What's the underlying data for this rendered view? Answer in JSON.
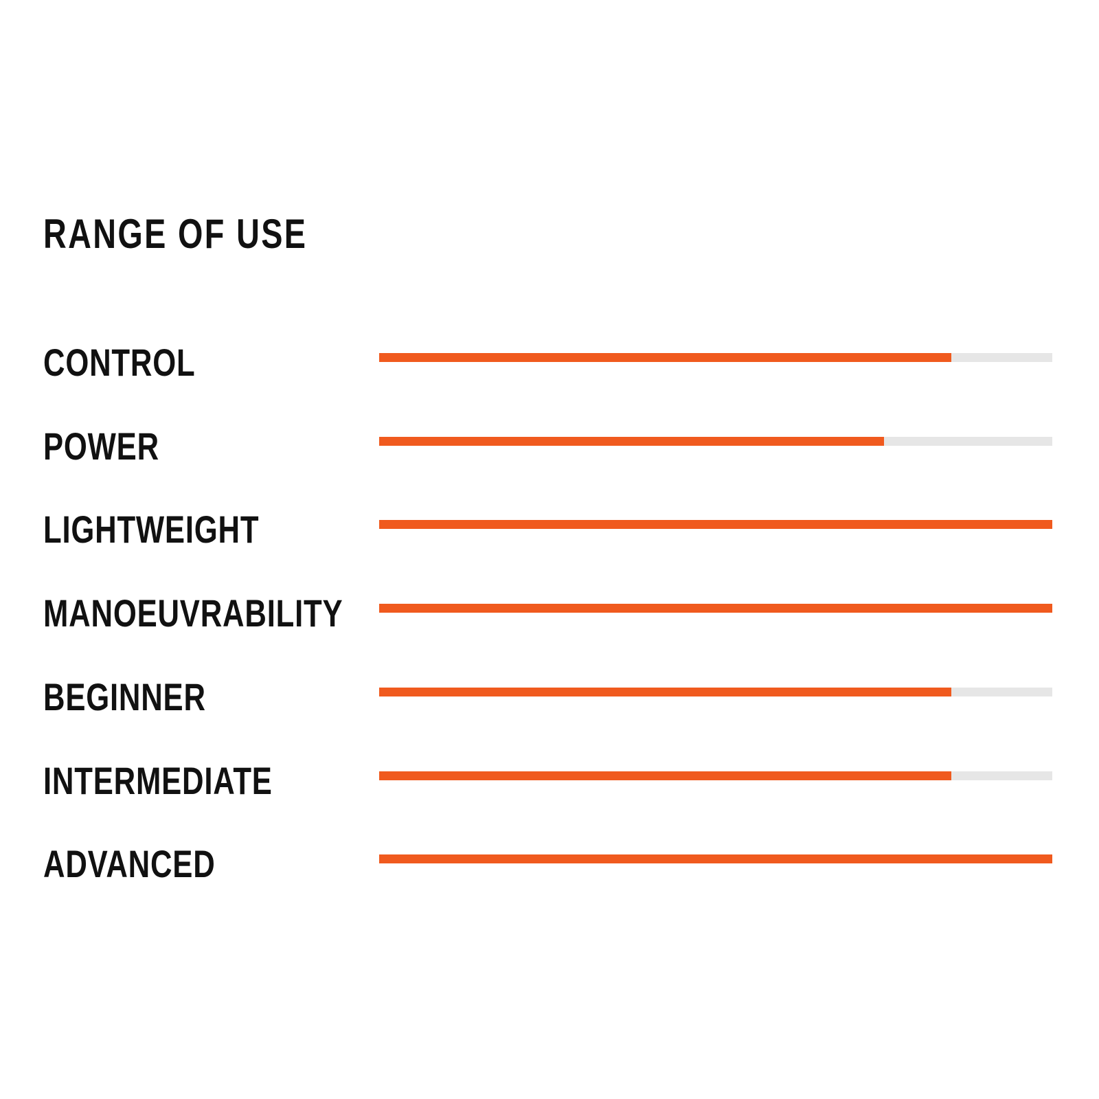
{
  "chart_data": {
    "type": "bar",
    "orientation": "horizontal",
    "title": "RANGE OF USE",
    "categories": [
      "CONTROL",
      "POWER",
      "LIGHTWEIGHT",
      "MANOEUVRABILITY",
      "BEGINNER",
      "INTERMEDIATE",
      "ADVANCED"
    ],
    "values": [
      85,
      75,
      100,
      100,
      85,
      85,
      100
    ],
    "unit": "percent",
    "xlim": [
      0,
      100
    ],
    "grid": false,
    "colors": {
      "fill": "#f05a1e",
      "track": "#e6e6e6",
      "text": "#111111"
    }
  }
}
